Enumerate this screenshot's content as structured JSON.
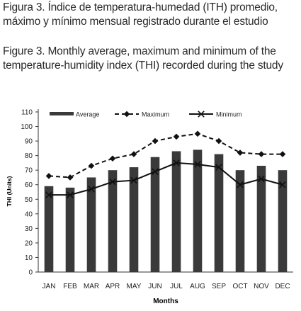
{
  "captions": {
    "spanish": "Figura 3. Índice de temperatura-humedad (ITH) promedio, máximo y mínimo mensual registrado durante el estudio",
    "english": "Figure 3. Monthly average, maximum and minimum of the temperature-humidity index (THI) recorded during the study"
  },
  "chart_data": {
    "type": "bar",
    "title": "",
    "xlabel": "Months",
    "ylabel": "THI (Units)",
    "ylim": [
      0,
      110
    ],
    "yticks": [
      0,
      10,
      20,
      30,
      40,
      50,
      60,
      70,
      80,
      90,
      100,
      110
    ],
    "categories": [
      "JAN",
      "FEB",
      "MAR",
      "APR",
      "MAY",
      "JUN",
      "JUL",
      "AUG",
      "SEP",
      "OCT",
      "NOV",
      "DEC"
    ],
    "legend_position": "top",
    "grid": false,
    "series": [
      {
        "name": "Average",
        "kind": "bar",
        "color": "#3a3a3a",
        "values": [
          59,
          58,
          65,
          70,
          72,
          79,
          83,
          84,
          81,
          70,
          73,
          70
        ]
      },
      {
        "name": "Maximum",
        "kind": "line",
        "style": "dashed",
        "marker": "diamond",
        "color": "#111111",
        "values": [
          66,
          65,
          73,
          78,
          81,
          90,
          93,
          95,
          90,
          82,
          81,
          81
        ]
      },
      {
        "name": "Minimum",
        "kind": "line",
        "style": "solid",
        "marker": "x",
        "color": "#111111",
        "values": [
          53,
          53,
          57,
          62,
          63,
          69,
          75,
          74,
          72,
          60,
          64,
          60
        ]
      }
    ]
  }
}
